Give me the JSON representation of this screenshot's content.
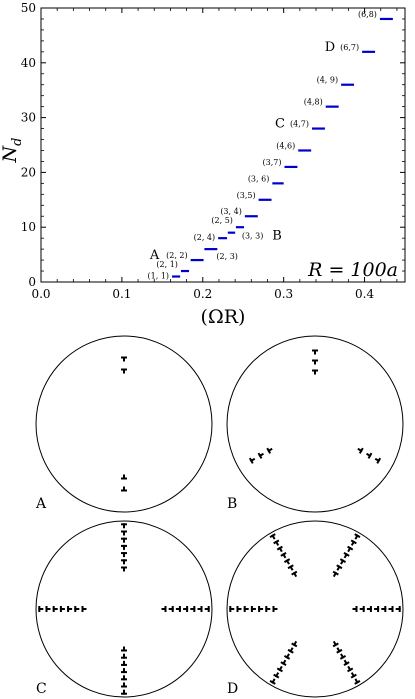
{
  "chart_data": {
    "type": "scatter",
    "xlabel": "(ΩR)",
    "ylabel": "N_d",
    "ylabel_main": "N",
    "ylabel_sub": "d",
    "xlim": [
      0.0,
      0.45
    ],
    "ylim": [
      0,
      50
    ],
    "xticks": [
      "0.0",
      "0.1",
      "0.2",
      "0.3",
      "0.4"
    ],
    "xtick_values": [
      0.0,
      0.1,
      0.2,
      0.3,
      0.4
    ],
    "yticks": [
      "0",
      "10",
      "20",
      "30",
      "40",
      "50"
    ],
    "ytick_values": [
      0,
      10,
      20,
      30,
      40,
      50
    ],
    "corner_label": "R = 100a",
    "marker_color": "#0000cc",
    "segments": [
      {
        "x0": 0.162,
        "x1": 0.172,
        "y": 1,
        "label": "(1, 1)",
        "letter": ""
      },
      {
        "x0": 0.173,
        "x1": 0.183,
        "y": 2,
        "label": "(2, 1)",
        "letter": ""
      },
      {
        "x0": 0.185,
        "x1": 0.201,
        "y": 4,
        "label": "(2, 2)",
        "letter": "A"
      },
      {
        "x0": 0.202,
        "x1": 0.218,
        "y": 6,
        "label": "(2, 3)",
        "letter": ""
      },
      {
        "x0": 0.219,
        "x1": 0.23,
        "y": 8,
        "label": "(2, 4)",
        "letter": ""
      },
      {
        "x0": 0.231,
        "x1": 0.24,
        "y": 9,
        "label": "(3, 3)",
        "letter": "B"
      },
      {
        "x0": 0.241,
        "x1": 0.251,
        "y": 10,
        "label": "(2, 5)",
        "letter": ""
      },
      {
        "x0": 0.252,
        "x1": 0.268,
        "y": 12,
        "label": "(3, 4)",
        "letter": ""
      },
      {
        "x0": 0.269,
        "x1": 0.285,
        "y": 15,
        "label": "(3,5)",
        "letter": ""
      },
      {
        "x0": 0.286,
        "x1": 0.3,
        "y": 18,
        "label": "(3, 6)",
        "letter": ""
      },
      {
        "x0": 0.301,
        "x1": 0.317,
        "y": 21,
        "label": "(3,7)",
        "letter": ""
      },
      {
        "x0": 0.318,
        "x1": 0.334,
        "y": 24,
        "label": "(4,6)",
        "letter": ""
      },
      {
        "x0": 0.335,
        "x1": 0.351,
        "y": 28,
        "label": "(4,7)",
        "letter": "C"
      },
      {
        "x0": 0.352,
        "x1": 0.368,
        "y": 32,
        "label": "(4,8)",
        "letter": ""
      },
      {
        "x0": 0.371,
        "x1": 0.387,
        "y": 36,
        "label": "(4, 9)",
        "letter": ""
      },
      {
        "x0": 0.397,
        "x1": 0.413,
        "y": 42,
        "label": "(6,7)",
        "letter": "D"
      },
      {
        "x0": 0.419,
        "x1": 0.435,
        "y": 48,
        "label": "(6,8)",
        "letter": ""
      }
    ]
  },
  "panels": [
    {
      "letter": "A",
      "arms": 2,
      "vortices_per_arm": 2
    },
    {
      "letter": "B",
      "arms": 3,
      "vortices_per_arm": 3
    },
    {
      "letter": "C",
      "arms": 4,
      "vortices_per_arm": 7
    },
    {
      "letter": "D",
      "arms": 6,
      "vortices_per_arm": 7
    }
  ]
}
